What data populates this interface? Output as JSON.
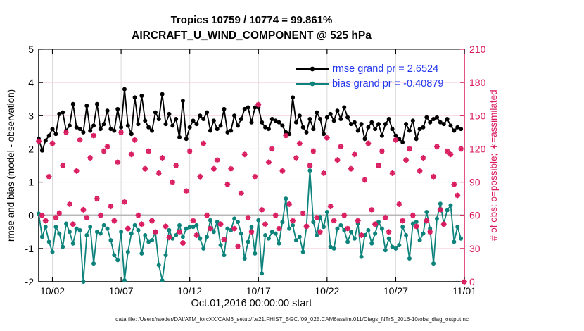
{
  "caption": "data file: /Users/raeder/DAI/ATM_forcXX/CAM6_setup/f.e21.FHIST_BGC.f09_025.CAM6assim.011/Diags_NTrS_2016-10/obs_diag_output.nc",
  "chart_data": {
    "type": "line",
    "title": "Tropics 10759 / 10774 = 99.861%",
    "subtitle": "AIRCRAFT_U_WIND_COMPONENT @ 525 hPa",
    "xlabel": "Oct.01,2016 00:00:00 start",
    "ylabel_left": "rmse and bias (model - observation)",
    "ylabel_right": "# of obs: o=possible; ∗=assimilated",
    "x_axis": {
      "start": "Oct 1 2016 00:00",
      "range_days": [
        0,
        31
      ],
      "tick_days": [
        1,
        6,
        11,
        16,
        21,
        26,
        31
      ],
      "tick_labels": [
        "10/02",
        "10/07",
        "10/12",
        "10/17",
        "10/22",
        "10/27",
        "11/01"
      ]
    },
    "y_left_axis": {
      "min": -2,
      "max": 5,
      "ticks": [
        5,
        4,
        3,
        2,
        1,
        0,
        -1,
        -2
      ]
    },
    "y_right_axis": {
      "min": 0,
      "max": 210,
      "ticks": [
        210,
        180,
        150,
        120,
        90,
        60,
        30,
        0
      ]
    },
    "grid": {
      "horizontal_color": "#f5cedd",
      "vertical_color": "#dadada",
      "zero_line_color": "#b8b8b8",
      "right_axis_color": "#d91a5e",
      "legend_text_color": "#2236ee"
    },
    "legend": [
      {
        "label": "rmse grand pr = 2.6524",
        "color": "#000000"
      },
      {
        "label": "bias grand pr = -0.40879",
        "color": "#0e837c"
      }
    ],
    "series": [
      {
        "name": "rmse",
        "color": "#000000",
        "axis": "left",
        "start_day": 0,
        "step_days": 0.25,
        "values": [
          2.3,
          1.95,
          2.25,
          2.4,
          2.6,
          2.45,
          3.05,
          3.1,
          2.55,
          2.7,
          3.35,
          2.65,
          2.6,
          2.5,
          3.3,
          2.55,
          2.7,
          3.35,
          2.6,
          2.75,
          3.15,
          2.6,
          2.55,
          3.2,
          2.65,
          3.8,
          2.7,
          2.45,
          3.55,
          2.75,
          3.6,
          2.85,
          2.65,
          2.55,
          3.1,
          2.9,
          3.65,
          2.75,
          3.05,
          2.7,
          2.9,
          2.35,
          3.45,
          2.3,
          2.65,
          2.85,
          2.75,
          3.0,
          2.9,
          3.1,
          2.55,
          2.85,
          2.6,
          2.7,
          3.2,
          2.5,
          2.55,
          3.0,
          2.7,
          2.9,
          3.2,
          3.25,
          2.8,
          3.25,
          3.25,
          2.8,
          2.65,
          2.6,
          2.9,
          2.85,
          2.8,
          2.7,
          2.5,
          2.45,
          3.55,
          2.8,
          3.0,
          2.65,
          2.5,
          2.9,
          2.6,
          3.1,
          2.9,
          2.45,
          2.95,
          3.05,
          2.85,
          3.15,
          2.9,
          3.25,
          2.95,
          2.75,
          2.8,
          2.55,
          2.75,
          2.3,
          2.65,
          2.8,
          2.6,
          2.75,
          2.4,
          2.75,
          2.9,
          2.6,
          2.4,
          2.3,
          2.2,
          2.75,
          2.55,
          2.85,
          2.3,
          2.6,
          2.65,
          2.95,
          2.8,
          2.9,
          2.95,
          2.8,
          2.75,
          2.9,
          2.7,
          2.55,
          2.65,
          2.6
        ]
      },
      {
        "name": "bias",
        "color": "#0e837c",
        "axis": "left",
        "start_day": 0,
        "step_days": 0.25,
        "values": [
          0.05,
          -0.65,
          -0.35,
          -0.8,
          -1.1,
          -0.35,
          -0.55,
          -0.95,
          -0.25,
          -0.5,
          -0.85,
          -0.4,
          -0.45,
          -2.0,
          -0.6,
          -0.35,
          -1.45,
          -0.5,
          -0.55,
          -0.3,
          -0.4,
          -0.75,
          -1.2,
          -1.35,
          -0.5,
          -1.96,
          -1.1,
          -0.55,
          -0.3,
          -0.45,
          -1.15,
          -0.6,
          -0.8,
          -0.75,
          -0.5,
          -1.5,
          -1.96,
          -1.2,
          -0.45,
          -0.7,
          -0.6,
          -0.3,
          -0.65,
          -0.4,
          -0.35,
          -0.35,
          -0.3,
          -0.7,
          -1.0,
          -0.65,
          -0.15,
          -0.5,
          -0.2,
          -0.9,
          -1.2,
          -0.4,
          -0.45,
          -0.1,
          -0.2,
          -0.55,
          -1.3,
          -0.8,
          -0.35,
          -1.15,
          -0.15,
          -1.75,
          -0.6,
          -0.7,
          -0.5,
          -0.55,
          -0.85,
          -0.2,
          0.5,
          -0.4,
          -0.3,
          -0.75,
          -0.65,
          -1.1,
          -0.35,
          1.35,
          -0.2,
          -0.6,
          -0.05,
          -0.35,
          0.1,
          -0.95,
          -1.0,
          -0.4,
          -0.3,
          -0.45,
          -0.8,
          -0.5,
          -0.7,
          -0.25,
          -1.25,
          -0.6,
          -0.45,
          -0.85,
          -0.55,
          -0.2,
          -0.4,
          -1.05,
          -0.7,
          -0.95,
          -1.0,
          -0.9,
          -0.35,
          -0.6,
          -1.3,
          -0.25,
          -0.2,
          -0.75,
          -0.55,
          0.1,
          -0.4,
          -1.45,
          -0.1,
          0.35,
          -0.25,
          0.15,
          0.3,
          -0.8,
          -0.35,
          -0.7
        ]
      },
      {
        "name": "obs_count_possible_and_assimilated",
        "color": "#d91a5e",
        "axis": "right",
        "markers": [
          "o",
          "*"
        ],
        "assimilated_overlaps_possible": true,
        "start_day": 0,
        "step_days": 0.25,
        "values": [
          127,
          60,
          55,
          95,
          125,
          58,
          62,
          105,
          135,
          70,
          52,
          100,
          128,
          65,
          58,
          112,
          132,
          75,
          60,
          118,
          122,
          68,
          55,
          108,
          135,
          72,
          48,
          115,
          128,
          60,
          52,
          102,
          118,
          55,
          45,
          98,
          112,
          50,
          40,
          90,
          105,
          45,
          35,
          82,
          118,
          55,
          42,
          95,
          125,
          60,
          48,
          102,
          110,
          52,
          38,
          88,
          102,
          48,
          32,
          80,
          115,
          58,
          45,
          95,
          160,
          65,
          52,
          108,
          120,
          60,
          48,
          100,
          132,
          70,
          55,
          112,
          125,
          62,
          50,
          105,
          118,
          58,
          45,
          98,
          130,
          68,
          55,
          110,
          122,
          60,
          48,
          102,
          115,
          55,
          42,
          92,
          125,
          65,
          52,
          105,
          118,
          58,
          45,
          98,
          128,
          70,
          55,
          110,
          120,
          60,
          50,
          100,
          112,
          55,
          45,
          95,
          122,
          65,
          52,
          118,
          115,
          88,
          78,
          120,
          0
        ]
      }
    ]
  }
}
